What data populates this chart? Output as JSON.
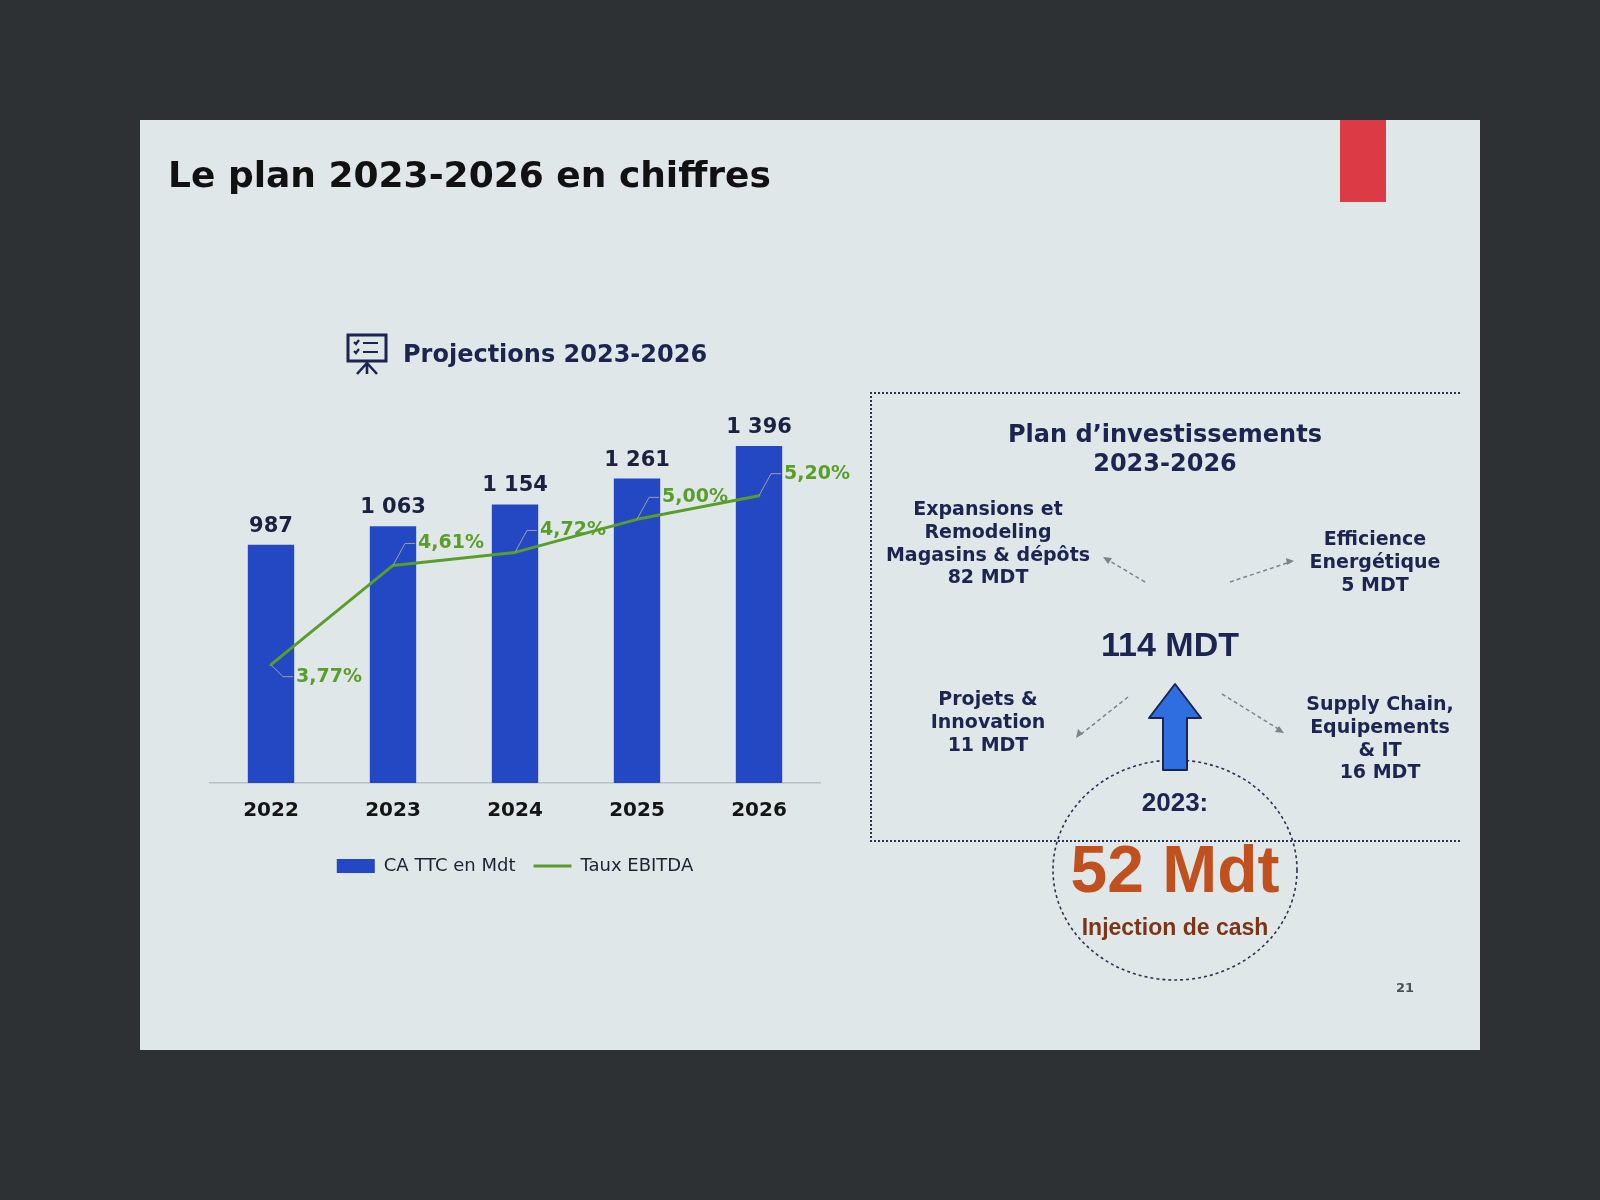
{
  "chart_data": [
    {
      "type": "bar",
      "title": "Le plan 2023-2026 en chiffres",
      "subtitle": "Projections 2023-2026",
      "categories": [
        "2022",
        "2023",
        "2024",
        "2025",
        "2026"
      ],
      "series": [
        {
          "name": "CA TTC en Mdt",
          "type": "bar",
          "color": "#2447c4",
          "values": [
            987,
            1063,
            1154,
            1261,
            1396
          ],
          "value_labels": [
            "987",
            "1 063",
            "1 154",
            "1 261",
            "1 396"
          ]
        },
        {
          "name": "Taux EBITDA",
          "type": "line",
          "axis": "y2",
          "color": "#5a9e2a",
          "values": [
            3.77,
            4.61,
            4.72,
            5.0,
            5.2
          ],
          "value_labels": [
            "3,77%",
            "4,61%",
            "4,72%",
            "5,00%",
            "5,20%"
          ]
        }
      ],
      "tick_labels": "x",
      "marker": "none",
      "legend": "bottom"
    },
    {
      "type": "other",
      "title": "Plan d’investissements\n2023-2026",
      "annotations": [
        "Expansions et\nRemodeling\nMagasins & dépôts\n82 MDT",
        "Efficience\nEnergétique\n5 MDT",
        "114 MDT",
        "Projets &\nInnovation\n11 MDT",
        "Supply Chain,\nEquipements\n& IT\n16 MDT",
        "2023:",
        "52 Mdt",
        "Injection de cash",
        "21"
      ]
    }
  ]
}
